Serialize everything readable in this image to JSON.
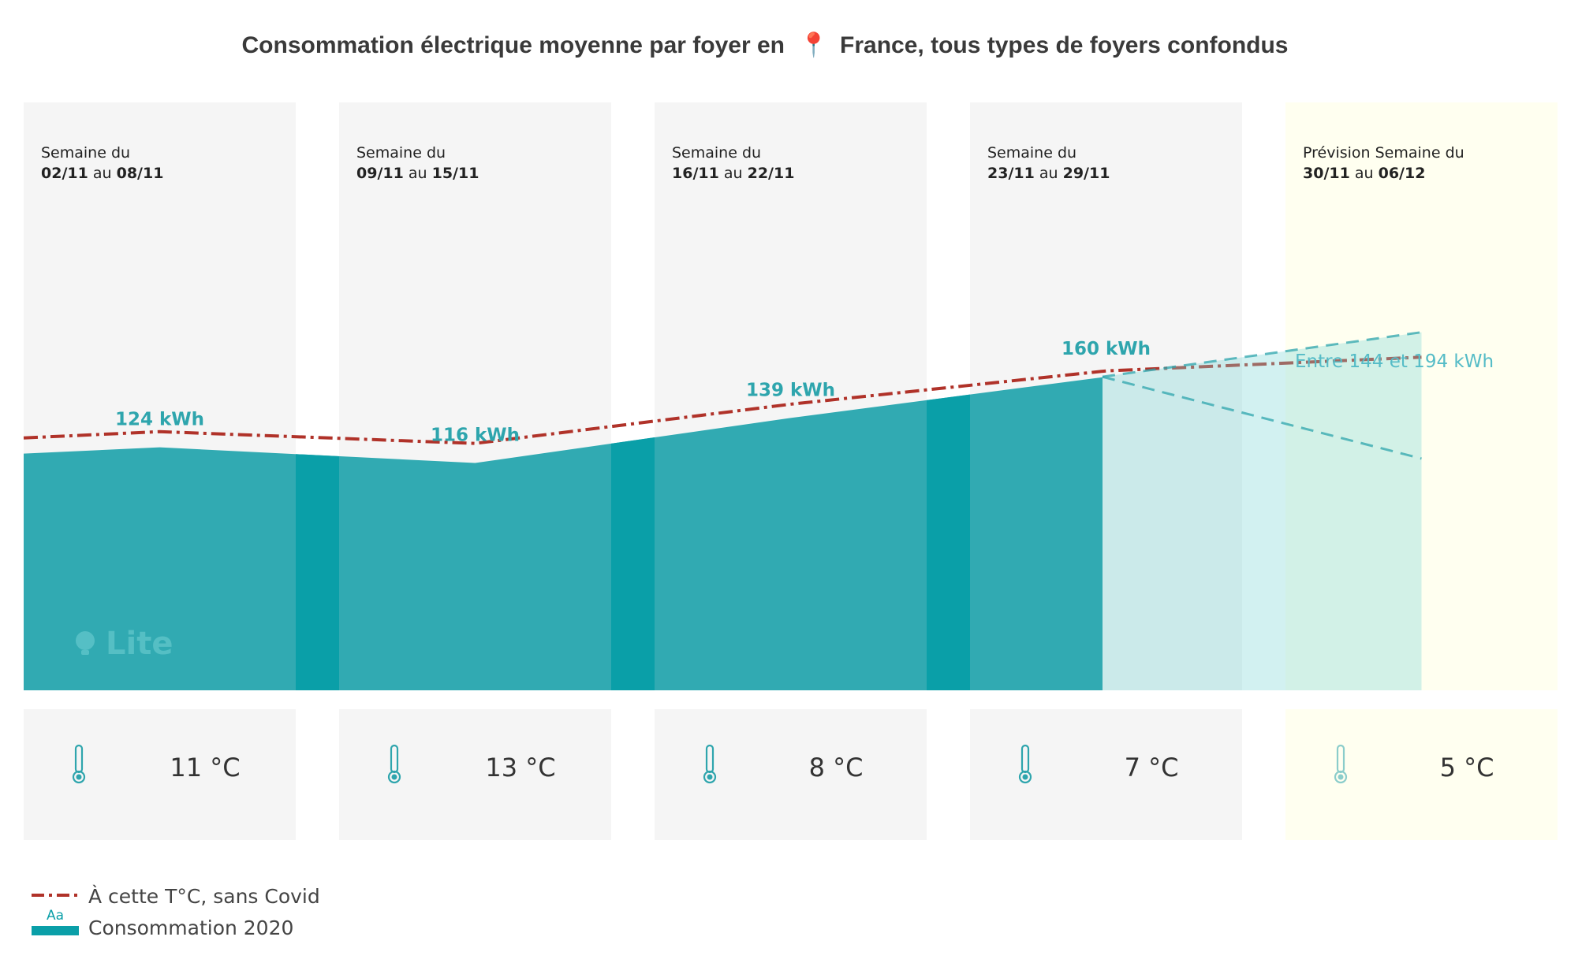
{
  "chart_data": {
    "type": "area",
    "title": {
      "before": "Consommation électrique moyenne par foyer en",
      "after": "France, tous types de foyers confondus"
    },
    "weeks": [
      {
        "label": "Semaine du",
        "start": "02/11",
        "sep": "au",
        "end": "08/11",
        "temp": "11 °C",
        "forecast": false
      },
      {
        "label": "Semaine du",
        "start": "09/11",
        "sep": "au",
        "end": "15/11",
        "temp": "13 °C",
        "forecast": false
      },
      {
        "label": "Semaine du",
        "start": "16/11",
        "sep": "au",
        "end": "22/11",
        "temp": "8 °C",
        "forecast": false
      },
      {
        "label": "Semaine du",
        "start": "23/11",
        "sep": "au",
        "end": "29/11",
        "temp": "7 °C",
        "forecast": false
      },
      {
        "label": "Prévision Semaine du",
        "start": "30/11",
        "sep": "au",
        "end": "06/12",
        "temp": "5 °C",
        "forecast": true
      }
    ],
    "x": [
      "02/11 au 08/11",
      "09/11 au 15/11",
      "16/11 au 22/11",
      "23/11 au 29/11",
      "30/11 au 06/12"
    ],
    "series": [
      {
        "name": "Consommation 2020",
        "values": [
          124,
          116,
          139,
          160,
          null
        ],
        "value_labels": [
          "124 kWh",
          "116 kWh",
          "139 kWh",
          "160 kWh",
          null
        ],
        "forecast_range": [
          144,
          194
        ],
        "forecast_label": "Entre 144 et 194 kWh"
      },
      {
        "name": "À cette T°C, sans Covid",
        "values": [
          132,
          126,
          146,
          163,
          170
        ]
      }
    ],
    "ylim": [
      0,
      300
    ],
    "grid": false,
    "legend": "bottom-left",
    "watermark": "Lite",
    "legend_icon_text": "Aa",
    "colors": {
      "consumption": "#31aab2",
      "consumption_gap": "#0a9fa8",
      "baseline": "#b03229",
      "forecast_band": "#7fd8d8",
      "panel_bg": "#f5f5f5",
      "forecast_bg": "#fffff0",
      "label": "#2ea5ad",
      "range_label": "#55bcc7"
    }
  }
}
